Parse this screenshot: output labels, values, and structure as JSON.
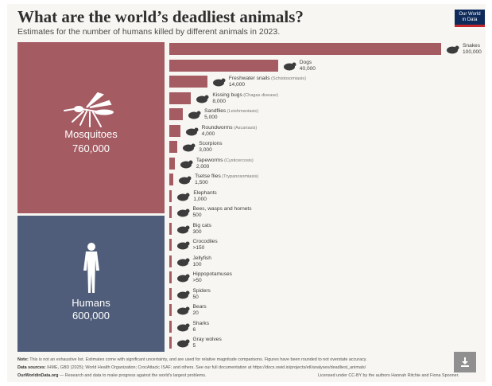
{
  "header": {
    "title": "What are the world’s deadliest animals?",
    "subtitle": "Estimates for the number of humans killed by different animals in 2023.",
    "logo_line1": "Our World",
    "logo_line2": "in Data"
  },
  "colors": {
    "mosquito_block": "#a45b62",
    "human_block": "#4f5d7a",
    "bar": "#a45b62",
    "icon": "#3c3c3c"
  },
  "chart_data": {
    "type": "bar",
    "title": "What are the world’s deadliest animals?",
    "subtitle": "Estimates for the number of humans killed by different animals in 2023.",
    "highlight_blocks": [
      {
        "name": "Mosquitoes",
        "value": 760000,
        "value_label": "760,000",
        "icon": "mosquito-icon"
      },
      {
        "name": "Humans",
        "value": 600000,
        "value_label": "600,000",
        "icon": "human-icon"
      }
    ],
    "bars": [
      {
        "name": "Snakes",
        "note": "",
        "value": 100000,
        "value_label": "100,000",
        "icon": "snake-icon"
      },
      {
        "name": "Dogs",
        "note": "",
        "value": 40000,
        "value_label": "40,000",
        "icon": "dog-icon"
      },
      {
        "name": "Freshwater snails",
        "note": "(Schistosomiasis)",
        "value": 14000,
        "value_label": "14,000",
        "icon": "snail-icon"
      },
      {
        "name": "Kissing bugs",
        "note": "(Chagas disease)",
        "value": 8000,
        "value_label": "8,000",
        "icon": "bug-icon"
      },
      {
        "name": "Sandflies",
        "note": "(Leishmaniasis)",
        "value": 5000,
        "value_label": "5,000",
        "icon": "sandfly-icon"
      },
      {
        "name": "Roundworms",
        "note": "(Ascariasis)",
        "value": 4000,
        "value_label": "4,000",
        "icon": "roundworm-icon"
      },
      {
        "name": "Scorpions",
        "note": "",
        "value": 3000,
        "value_label": "3,000",
        "icon": "scorpion-icon"
      },
      {
        "name": "Tapeworms",
        "note": "(Cysticercosis)",
        "value": 2000,
        "value_label": "2,000",
        "icon": "tapeworm-icon"
      },
      {
        "name": "Tsetse flies",
        "note": "(Trypanosomiasis)",
        "value": 1500,
        "value_label": "1,500",
        "icon": "tsetse-fly-icon"
      },
      {
        "name": "Elephants",
        "note": "",
        "value": 1000,
        "value_label": "1,000",
        "icon": "elephant-icon"
      },
      {
        "name": "Bees, wasps and hornets",
        "note": "",
        "value": 500,
        "value_label": "500",
        "icon": "bee-icon"
      },
      {
        "name": "Big cats",
        "note": "",
        "value": 300,
        "value_label": "300",
        "icon": "big-cat-icon"
      },
      {
        "name": "Crocodiles",
        "note": "",
        "value": 150,
        "value_label": ">150",
        "icon": "crocodile-icon"
      },
      {
        "name": "Jellyfish",
        "note": "",
        "value": 100,
        "value_label": "100",
        "icon": "jellyfish-icon"
      },
      {
        "name": "Hippopotamuses",
        "note": "",
        "value": 50,
        "value_label": ">50",
        "icon": "hippo-icon"
      },
      {
        "name": "Spiders",
        "note": "",
        "value": 50,
        "value_label": "50",
        "icon": "spider-icon"
      },
      {
        "name": "Bears",
        "note": "",
        "value": 20,
        "value_label": "20",
        "icon": "bear-icon"
      },
      {
        "name": "Sharks",
        "note": "",
        "value": 6,
        "value_label": "6",
        "icon": "shark-icon"
      },
      {
        "name": "Gray wolves",
        "note": "",
        "value": 5,
        "value_label": "5",
        "icon": "wolf-icon"
      }
    ],
    "xlim": [
      0,
      100000
    ]
  },
  "footer": {
    "note_label": "Note:",
    "note": "This is not an exhaustive list. Estimates come with significant uncertainty, and are used for relative magnitude comparisons. Figures have been rounded to not overstate accuracy.",
    "sources_label": "Data sources:",
    "sources": "IHME, GBD (2025); World Health Organization; CrocAttack; ISAF; and others. See our full documentation at https://docs.owid.io/projects/etl/analyses/deadliest_animals/",
    "site": "OurWorldinData.org",
    "tagline": "— Research and data to make progress against the world’s largest problems.",
    "license": "Licensed under CC-BY by the authors Hannah Ritchie and Fiona Spooner."
  },
  "download_icon": "download-icon"
}
